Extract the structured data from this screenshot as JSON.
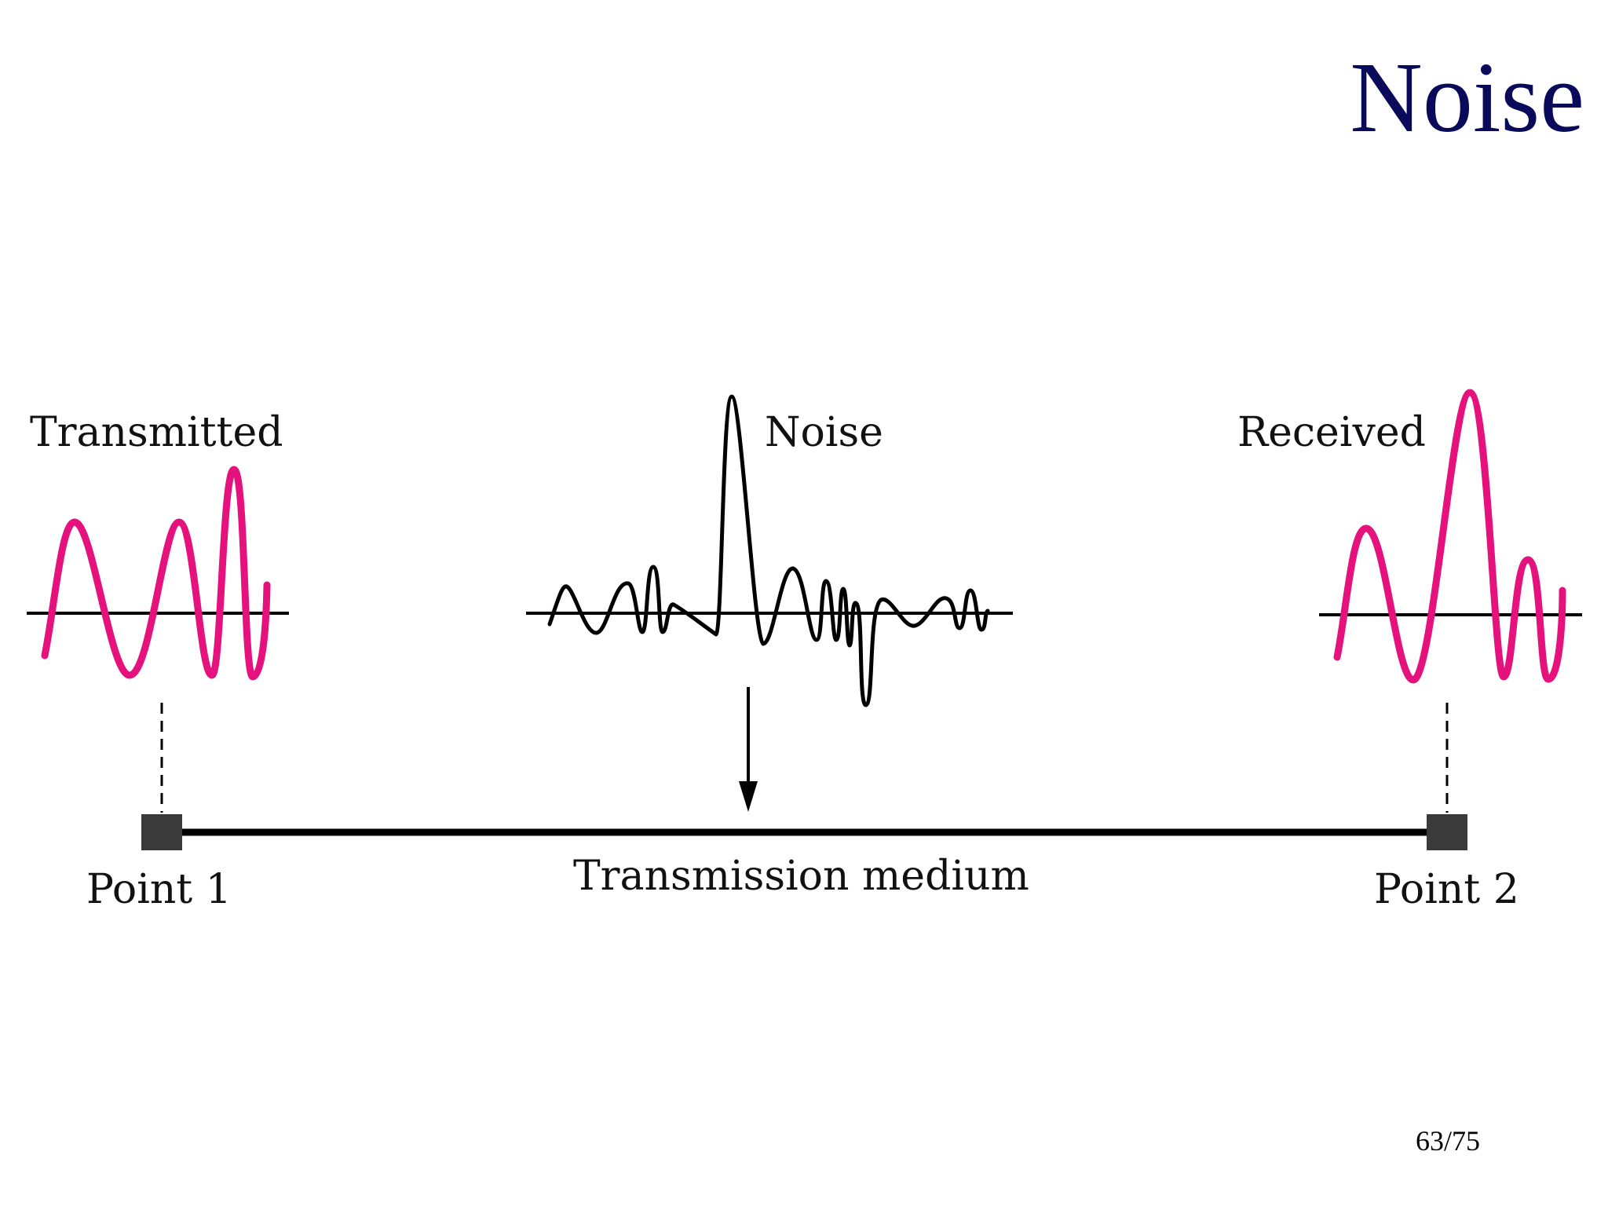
{
  "slide": {
    "title": "Noise",
    "page_number": "63/75"
  },
  "diagram": {
    "labels": {
      "transmitted": "Transmitted",
      "noise": "Noise",
      "received": "Received",
      "point1": "Point 1",
      "point2": "Point 2",
      "medium": "Transmission medium"
    },
    "colors": {
      "signal": "#e5127d",
      "noise": "#000000",
      "endpoint": "#3a3a3a",
      "title": "#0a0a5a"
    }
  }
}
